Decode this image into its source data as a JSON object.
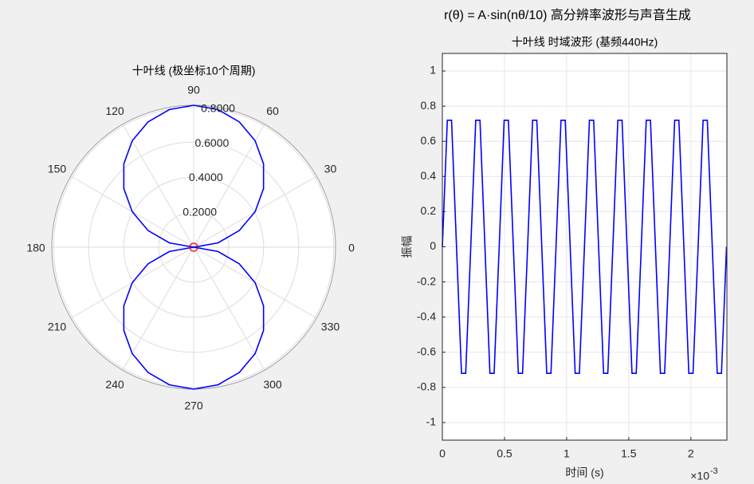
{
  "title": "r(θ) = A·sin(nθ/10) 高分辨率波形与声音生成",
  "chart_data": [
    {
      "type": "polar",
      "title": "十叶线 (极坐标10个周期)",
      "rlim": [
        0,
        0.81
      ],
      "rticks": [
        {
          "value": 0.2,
          "label": "0.2000"
        },
        {
          "value": 0.4,
          "label": "0.4000"
        },
        {
          "value": 0.6,
          "label": "0.6000"
        },
        {
          "value": 0.8,
          "label": "0.8000"
        }
      ],
      "thetaticks": [
        0,
        30,
        60,
        90,
        120,
        150,
        180,
        210,
        240,
        270,
        300,
        330
      ],
      "grid": true,
      "series": [
        {
          "color": "#0000ff",
          "theta": [
            0,
            10,
            20,
            30,
            40,
            50,
            60,
            70,
            80,
            90,
            100,
            110,
            120,
            130,
            140,
            150,
            160,
            170,
            180,
            190,
            200,
            210,
            220,
            230,
            240,
            250,
            260,
            270,
            280,
            290,
            300,
            310,
            320,
            330,
            340,
            350,
            360
          ],
          "r": [
            0,
            0.1407,
            0.277,
            0.405,
            0.5207,
            0.6205,
            0.7015,
            0.7612,
            0.7977,
            0.81,
            0.7977,
            0.7612,
            0.7015,
            0.6205,
            0.5207,
            0.405,
            0.277,
            0.1407,
            0,
            0.1407,
            0.277,
            0.405,
            0.5207,
            0.6205,
            0.7015,
            0.7612,
            0.7977,
            0.81,
            0.7977,
            0.7612,
            0.7015,
            0.6205,
            0.5207,
            0.405,
            0.277,
            0.1407,
            0
          ]
        },
        {
          "color": "#ff0000",
          "marker": "circle",
          "theta": [
            0
          ],
          "r": [
            0
          ]
        }
      ]
    },
    {
      "type": "line",
      "title": "十叶线 时域波形 (基频440Hz)",
      "xlabel": "时间 (s)",
      "ylabel": "振幅",
      "x_multiplier": "×10",
      "x_exponent": "-3",
      "xlim": [
        0,
        0.00229
      ],
      "ylim": [
        -1.1,
        1.1
      ],
      "xticks": [
        {
          "value": 0,
          "label": "0"
        },
        {
          "value": 0.0005,
          "label": "0.5"
        },
        {
          "value": 0.001,
          "label": "1"
        },
        {
          "value": 0.0015,
          "label": "1.5"
        },
        {
          "value": 0.002,
          "label": "2"
        }
      ],
      "yticks": [
        -1,
        -0.8,
        -0.6,
        -0.4,
        -0.2,
        0,
        0.2,
        0.4,
        0.6,
        0.8,
        1
      ],
      "grid": true,
      "series": [
        {
          "color": "#0000ff",
          "x": [
            0,
            4e-05,
            7.4e-05,
            0.000154,
            0.000188,
            0.0002287,
            0.0002687,
            0.0003027,
            0.0003827,
            0.0004167,
            0.0004574,
            0.0004974,
            0.0005314,
            0.0006114,
            0.0006454,
            0.0006861,
            0.0007261,
            0.0007601,
            0.0008401,
            0.0008741,
            0.0009148,
            0.0009548,
            0.0009888,
            0.0010688,
            0.0011028,
            0.0011435,
            0.0011835,
            0.0012175,
            0.0012975,
            0.0013315,
            0.0013722,
            0.0014122,
            0.0014462,
            0.0015262,
            0.0015602,
            0.0016009,
            0.0016409,
            0.0016749,
            0.0017549,
            0.0017889,
            0.0018296,
            0.0018696,
            0.0019036,
            0.0019836,
            0.0020176,
            0.0020583,
            0.0020983,
            0.0021323,
            0.0022123,
            0.0022463,
            0.002287
          ],
          "values": [
            0,
            0.72,
            0.72,
            -0.72,
            -0.72,
            0,
            0.72,
            0.72,
            -0.72,
            -0.72,
            0,
            0.72,
            0.72,
            -0.72,
            -0.72,
            0,
            0.72,
            0.72,
            -0.72,
            -0.72,
            0,
            0.72,
            0.72,
            -0.72,
            -0.72,
            0,
            0.72,
            0.72,
            -0.72,
            -0.72,
            0,
            0.72,
            0.72,
            -0.72,
            -0.72,
            0,
            0.72,
            0.72,
            -0.72,
            -0.72,
            0,
            0.72,
            0.72,
            -0.72,
            -0.72,
            0,
            0.72,
            0.72,
            -0.72,
            -0.72,
            0
          ]
        }
      ]
    }
  ]
}
